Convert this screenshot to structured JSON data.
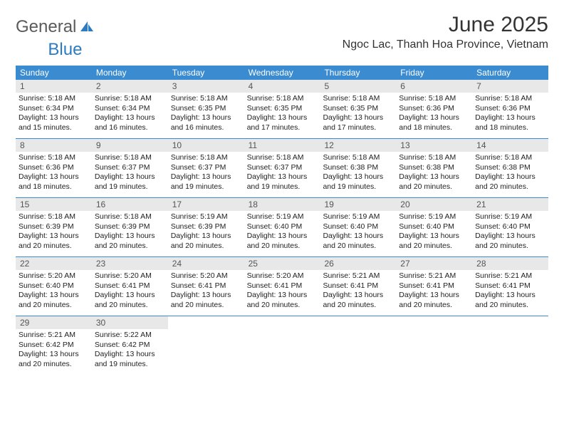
{
  "brand": {
    "part1": "General",
    "part2": "Blue"
  },
  "header": {
    "title": "June 2025",
    "location": "Ngoc Lac, Thanh Hoa Province, Vietnam"
  },
  "colors": {
    "header_bar": "#3a8bd0",
    "daynum_bg": "#e8e8e8",
    "brand_blue": "#2b7cc4",
    "text": "#1a1a1a"
  },
  "weekdays": [
    "Sunday",
    "Monday",
    "Tuesday",
    "Wednesday",
    "Thursday",
    "Friday",
    "Saturday"
  ],
  "days": [
    {
      "n": "1",
      "sunrise": "Sunrise: 5:18 AM",
      "sunset": "Sunset: 6:34 PM",
      "daylight": "Daylight: 13 hours and 15 minutes."
    },
    {
      "n": "2",
      "sunrise": "Sunrise: 5:18 AM",
      "sunset": "Sunset: 6:34 PM",
      "daylight": "Daylight: 13 hours and 16 minutes."
    },
    {
      "n": "3",
      "sunrise": "Sunrise: 5:18 AM",
      "sunset": "Sunset: 6:35 PM",
      "daylight": "Daylight: 13 hours and 16 minutes."
    },
    {
      "n": "4",
      "sunrise": "Sunrise: 5:18 AM",
      "sunset": "Sunset: 6:35 PM",
      "daylight": "Daylight: 13 hours and 17 minutes."
    },
    {
      "n": "5",
      "sunrise": "Sunrise: 5:18 AM",
      "sunset": "Sunset: 6:35 PM",
      "daylight": "Daylight: 13 hours and 17 minutes."
    },
    {
      "n": "6",
      "sunrise": "Sunrise: 5:18 AM",
      "sunset": "Sunset: 6:36 PM",
      "daylight": "Daylight: 13 hours and 18 minutes."
    },
    {
      "n": "7",
      "sunrise": "Sunrise: 5:18 AM",
      "sunset": "Sunset: 6:36 PM",
      "daylight": "Daylight: 13 hours and 18 minutes."
    },
    {
      "n": "8",
      "sunrise": "Sunrise: 5:18 AM",
      "sunset": "Sunset: 6:36 PM",
      "daylight": "Daylight: 13 hours and 18 minutes."
    },
    {
      "n": "9",
      "sunrise": "Sunrise: 5:18 AM",
      "sunset": "Sunset: 6:37 PM",
      "daylight": "Daylight: 13 hours and 19 minutes."
    },
    {
      "n": "10",
      "sunrise": "Sunrise: 5:18 AM",
      "sunset": "Sunset: 6:37 PM",
      "daylight": "Daylight: 13 hours and 19 minutes."
    },
    {
      "n": "11",
      "sunrise": "Sunrise: 5:18 AM",
      "sunset": "Sunset: 6:37 PM",
      "daylight": "Daylight: 13 hours and 19 minutes."
    },
    {
      "n": "12",
      "sunrise": "Sunrise: 5:18 AM",
      "sunset": "Sunset: 6:38 PM",
      "daylight": "Daylight: 13 hours and 19 minutes."
    },
    {
      "n": "13",
      "sunrise": "Sunrise: 5:18 AM",
      "sunset": "Sunset: 6:38 PM",
      "daylight": "Daylight: 13 hours and 20 minutes."
    },
    {
      "n": "14",
      "sunrise": "Sunrise: 5:18 AM",
      "sunset": "Sunset: 6:38 PM",
      "daylight": "Daylight: 13 hours and 20 minutes."
    },
    {
      "n": "15",
      "sunrise": "Sunrise: 5:18 AM",
      "sunset": "Sunset: 6:39 PM",
      "daylight": "Daylight: 13 hours and 20 minutes."
    },
    {
      "n": "16",
      "sunrise": "Sunrise: 5:18 AM",
      "sunset": "Sunset: 6:39 PM",
      "daylight": "Daylight: 13 hours and 20 minutes."
    },
    {
      "n": "17",
      "sunrise": "Sunrise: 5:19 AM",
      "sunset": "Sunset: 6:39 PM",
      "daylight": "Daylight: 13 hours and 20 minutes."
    },
    {
      "n": "18",
      "sunrise": "Sunrise: 5:19 AM",
      "sunset": "Sunset: 6:40 PM",
      "daylight": "Daylight: 13 hours and 20 minutes."
    },
    {
      "n": "19",
      "sunrise": "Sunrise: 5:19 AM",
      "sunset": "Sunset: 6:40 PM",
      "daylight": "Daylight: 13 hours and 20 minutes."
    },
    {
      "n": "20",
      "sunrise": "Sunrise: 5:19 AM",
      "sunset": "Sunset: 6:40 PM",
      "daylight": "Daylight: 13 hours and 20 minutes."
    },
    {
      "n": "21",
      "sunrise": "Sunrise: 5:19 AM",
      "sunset": "Sunset: 6:40 PM",
      "daylight": "Daylight: 13 hours and 20 minutes."
    },
    {
      "n": "22",
      "sunrise": "Sunrise: 5:20 AM",
      "sunset": "Sunset: 6:40 PM",
      "daylight": "Daylight: 13 hours and 20 minutes."
    },
    {
      "n": "23",
      "sunrise": "Sunrise: 5:20 AM",
      "sunset": "Sunset: 6:41 PM",
      "daylight": "Daylight: 13 hours and 20 minutes."
    },
    {
      "n": "24",
      "sunrise": "Sunrise: 5:20 AM",
      "sunset": "Sunset: 6:41 PM",
      "daylight": "Daylight: 13 hours and 20 minutes."
    },
    {
      "n": "25",
      "sunrise": "Sunrise: 5:20 AM",
      "sunset": "Sunset: 6:41 PM",
      "daylight": "Daylight: 13 hours and 20 minutes."
    },
    {
      "n": "26",
      "sunrise": "Sunrise: 5:21 AM",
      "sunset": "Sunset: 6:41 PM",
      "daylight": "Daylight: 13 hours and 20 minutes."
    },
    {
      "n": "27",
      "sunrise": "Sunrise: 5:21 AM",
      "sunset": "Sunset: 6:41 PM",
      "daylight": "Daylight: 13 hours and 20 minutes."
    },
    {
      "n": "28",
      "sunrise": "Sunrise: 5:21 AM",
      "sunset": "Sunset: 6:41 PM",
      "daylight": "Daylight: 13 hours and 20 minutes."
    },
    {
      "n": "29",
      "sunrise": "Sunrise: 5:21 AM",
      "sunset": "Sunset: 6:42 PM",
      "daylight": "Daylight: 13 hours and 20 minutes."
    },
    {
      "n": "30",
      "sunrise": "Sunrise: 5:22 AM",
      "sunset": "Sunset: 6:42 PM",
      "daylight": "Daylight: 13 hours and 19 minutes."
    }
  ]
}
